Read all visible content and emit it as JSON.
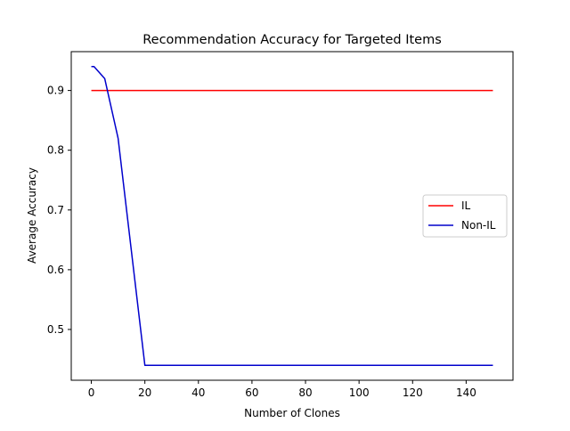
{
  "chart_data": {
    "type": "line",
    "title": "Recommendation Accuracy for Targeted Items",
    "xlabel": "Number of Clones",
    "ylabel": "Average Accuracy",
    "xlim": [
      -7.5,
      157.5
    ],
    "ylim": [
      0.415,
      0.965
    ],
    "xticks": [
      0,
      20,
      40,
      60,
      80,
      100,
      120,
      140
    ],
    "yticks": [
      0.5,
      0.6,
      0.7,
      0.8,
      0.9
    ],
    "xtick_labels": [
      "0",
      "20",
      "40",
      "60",
      "80",
      "100",
      "120",
      "140"
    ],
    "ytick_labels": [
      "0.5",
      "0.6",
      "0.7",
      "0.8",
      "0.9"
    ],
    "grid": false,
    "legend": {
      "position": "center-right"
    },
    "series": [
      {
        "name": "IL",
        "color": "#ff0000",
        "x": [
          0,
          150
        ],
        "y": [
          0.9,
          0.9
        ]
      },
      {
        "name": "Non-IL",
        "color": "#0000cc",
        "x": [
          0,
          1,
          5,
          10,
          20,
          30,
          40,
          50,
          60,
          70,
          80,
          90,
          100,
          110,
          120,
          130,
          140,
          150
        ],
        "y": [
          0.94,
          0.94,
          0.92,
          0.82,
          0.44,
          0.44,
          0.44,
          0.44,
          0.44,
          0.44,
          0.44,
          0.44,
          0.44,
          0.44,
          0.44,
          0.44,
          0.44,
          0.44
        ]
      }
    ]
  }
}
